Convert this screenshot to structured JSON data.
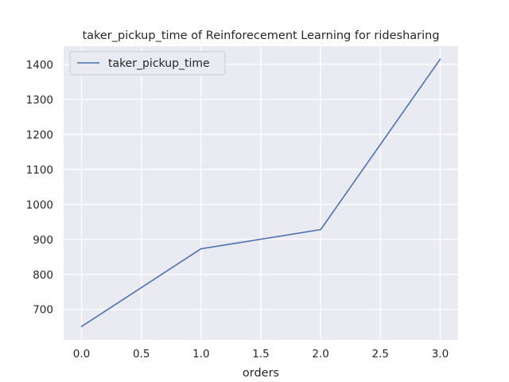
{
  "chart_data": {
    "type": "line",
    "title": "taker_pickup_time of Reinforecement Learning for ridesharing",
    "xlabel": "orders",
    "ylabel": "",
    "x": [
      0,
      1,
      2,
      3
    ],
    "series": [
      {
        "name": "taker_pickup_time",
        "values": [
          651,
          873,
          928,
          1415
        ],
        "color": "#4c72b0"
      }
    ],
    "xlim": [
      -0.15,
      3.15
    ],
    "ylim": [
      613,
      1452
    ],
    "xticks": [
      0.0,
      0.5,
      1.0,
      1.5,
      2.0,
      2.5,
      3.0
    ],
    "xtick_labels": [
      "0.0",
      "0.5",
      "1.0",
      "1.5",
      "2.0",
      "2.5",
      "3.0"
    ],
    "yticks": [
      700,
      800,
      900,
      1000,
      1100,
      1200,
      1300,
      1400
    ],
    "ytick_labels": [
      "700",
      "800",
      "900",
      "1000",
      "1100",
      "1200",
      "1300",
      "1400"
    ],
    "grid": true,
    "legend_position": "top-left",
    "background_color": "#eaeaf2",
    "grid_color": "#ffffff"
  }
}
